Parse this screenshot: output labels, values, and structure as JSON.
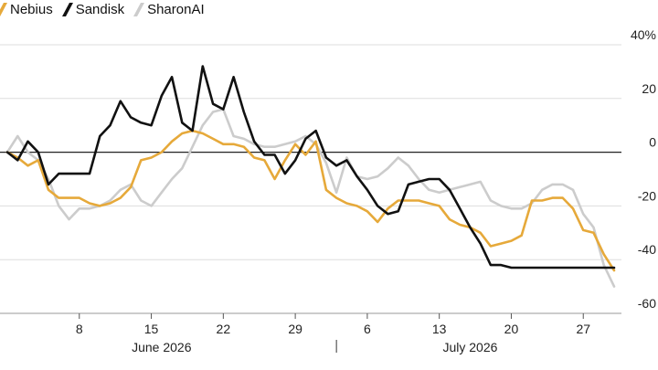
{
  "chart_data": {
    "type": "line",
    "title": "",
    "xlabel": "",
    "ylabel": "",
    "ylim": [
      -60,
      40
    ],
    "yticks": [
      -60,
      -40,
      -20,
      0,
      20,
      40
    ],
    "ytick_labels": [
      "-60",
      "-40",
      "-20",
      "0",
      "20",
      "40%"
    ],
    "grid": true,
    "legend": "top-left",
    "x_start": "2026-06-01",
    "x_end": "2026-07-30",
    "xticks": [
      "2026-06-08",
      "2026-06-15",
      "2026-06-22",
      "2026-06-29",
      "2026-07-06",
      "2026-07-13",
      "2026-07-20",
      "2026-07-27"
    ],
    "xtick_labels": [
      "8",
      "15",
      "22",
      "29",
      "6",
      "13",
      "20",
      "27"
    ],
    "months": [
      {
        "label": "June 2026",
        "center": "2026-06-16"
      },
      {
        "label": "July 2026",
        "center": "2026-07-16"
      }
    ],
    "month_divider": "2026-07-03",
    "dates": [
      "2026-06-01",
      "2026-06-02",
      "2026-06-03",
      "2026-06-04",
      "2026-06-05",
      "2026-06-06",
      "2026-06-07",
      "2026-06-08",
      "2026-06-09",
      "2026-06-10",
      "2026-06-11",
      "2026-06-12",
      "2026-06-13",
      "2026-06-14",
      "2026-06-15",
      "2026-06-16",
      "2026-06-17",
      "2026-06-18",
      "2026-06-19",
      "2026-06-20",
      "2026-06-21",
      "2026-06-22",
      "2026-06-23",
      "2026-06-24",
      "2026-06-25",
      "2026-06-26",
      "2026-06-27",
      "2026-06-28",
      "2026-06-29",
      "2026-06-30",
      "2026-07-01",
      "2026-07-02",
      "2026-07-03",
      "2026-07-04",
      "2026-07-05",
      "2026-07-06",
      "2026-07-07",
      "2026-07-08",
      "2026-07-09",
      "2026-07-10",
      "2026-07-11",
      "2026-07-12",
      "2026-07-13",
      "2026-07-14",
      "2026-07-15",
      "2026-07-16",
      "2026-07-17",
      "2026-07-18",
      "2026-07-19",
      "2026-07-20",
      "2026-07-21",
      "2026-07-22",
      "2026-07-23",
      "2026-07-24",
      "2026-07-25",
      "2026-07-26",
      "2026-07-27",
      "2026-07-28",
      "2026-07-29",
      "2026-07-30"
    ],
    "series": [
      {
        "name": "SharonAI",
        "color": "#cccccc",
        "values": [
          0,
          6,
          0,
          -3,
          -10,
          -20,
          -25,
          -21,
          -21,
          -20,
          -18,
          -14,
          -12,
          -18,
          -20,
          -15,
          -10,
          -6,
          2,
          10,
          15,
          16,
          6,
          5,
          3,
          2,
          2,
          3,
          4,
          6,
          3,
          -4,
          -15,
          -2,
          -9,
          -10,
          -9,
          -6,
          -2,
          -5,
          -10,
          -14,
          -15,
          -14,
          -13,
          -12,
          -11,
          -18,
          -20,
          -21,
          -21,
          -19,
          -14,
          -12,
          -12,
          -14,
          -23,
          -28,
          -42,
          -50
        ]
      },
      {
        "name": "Nebius",
        "color": "#e6a93a",
        "values": [
          0,
          -2,
          -5,
          -3,
          -14,
          -17,
          -17,
          -17,
          -19,
          -20,
          -19,
          -17,
          -13,
          -3,
          -2,
          0,
          4,
          7,
          8,
          7,
          5,
          3,
          3,
          2,
          -2,
          -3,
          -10,
          -3,
          3,
          -1,
          4,
          -14,
          -17,
          -19,
          -20,
          -22,
          -26,
          -21,
          -18,
          -18,
          -18,
          -19,
          -20,
          -25,
          -27,
          -28,
          -30,
          -35,
          -34,
          -33,
          -31,
          -18,
          -18,
          -17,
          -17,
          -21,
          -29,
          -30,
          -38,
          -44
        ]
      },
      {
        "name": "Sandisk",
        "color": "#111111",
        "values": [
          0,
          -3,
          4,
          0,
          -12,
          -8,
          -8,
          -8,
          -8,
          6,
          10,
          19,
          13,
          11,
          10,
          21,
          28,
          11,
          8,
          32,
          18,
          16,
          28,
          15,
          4,
          -1,
          -1,
          -8,
          -3,
          5,
          8,
          -2,
          -5,
          -3,
          -9,
          -14,
          -20,
          -23,
          -22,
          -12,
          -11,
          -10,
          -10,
          -14,
          -21,
          -28,
          -34,
          -42,
          -42,
          -43,
          -43,
          -43,
          -43,
          -43,
          -43,
          -43,
          -43,
          -43,
          -43,
          -43
        ]
      }
    ]
  },
  "legend": {
    "items": [
      {
        "label": "Nebius",
        "color": "#e6a93a"
      },
      {
        "label": "Sandisk",
        "color": "#111111"
      },
      {
        "label": "SharonAI",
        "color": "#cccccc"
      }
    ]
  }
}
